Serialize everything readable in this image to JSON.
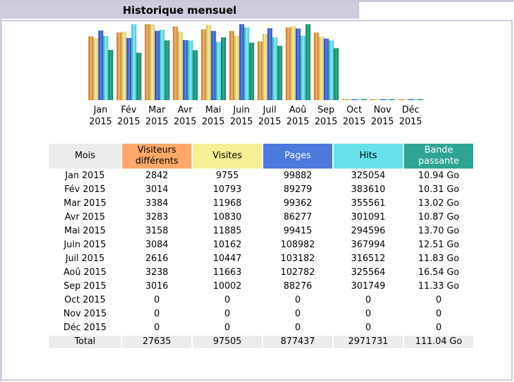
{
  "title": "Historique mensuel",
  "headers": {
    "month": "Mois",
    "visitors": "Visiteurs différents",
    "visits": "Visites",
    "pages": "Pages",
    "hits": "Hits",
    "bandwidth": "Bande passante"
  },
  "colors": {
    "visitors": "#e8943a",
    "visits": "#e9dc78",
    "pages": "#3c63d4",
    "hits": "#4fd8e0",
    "bandwidth": "#1f9a7a"
  },
  "chart_data": {
    "type": "bar",
    "categories": [
      {
        "month": "Jan",
        "year": "2015"
      },
      {
        "month": "Fév",
        "year": "2015"
      },
      {
        "month": "Mar",
        "year": "2015"
      },
      {
        "month": "Avr",
        "year": "2015"
      },
      {
        "month": "Mai",
        "year": "2015"
      },
      {
        "month": "Juin",
        "year": "2015"
      },
      {
        "month": "Juil",
        "year": "2015"
      },
      {
        "month": "Aoû",
        "year": "2015"
      },
      {
        "month": "Sep",
        "year": "2015"
      },
      {
        "month": "Oct",
        "year": "2015"
      },
      {
        "month": "Nov",
        "year": "2015"
      },
      {
        "month": "Déc",
        "year": "2015"
      }
    ],
    "series": [
      {
        "key": "visitors",
        "values": [
          2842,
          3014,
          3384,
          3283,
          3158,
          3084,
          2616,
          3238,
          3016,
          0,
          0,
          0
        ]
      },
      {
        "key": "visits",
        "values": [
          9755,
          10793,
          11968,
          10830,
          11885,
          10162,
          10447,
          11663,
          10002,
          0,
          0,
          0
        ]
      },
      {
        "key": "pages",
        "values": [
          99882,
          89279,
          99362,
          86277,
          99415,
          108982,
          103182,
          102782,
          88276,
          0,
          0,
          0
        ]
      },
      {
        "key": "hits",
        "values": [
          325054,
          383610,
          355561,
          301091,
          294596,
          367994,
          316512,
          325564,
          301749,
          0,
          0,
          0
        ]
      },
      {
        "key": "bandwidth",
        "values": [
          10.94,
          10.31,
          13.02,
          10.87,
          13.7,
          12.51,
          11.83,
          16.54,
          11.33,
          0,
          0,
          0
        ]
      }
    ]
  },
  "rows": [
    {
      "month": "Jan 2015",
      "visitors": "2842",
      "visits": "9755",
      "pages": "99882",
      "hits": "325054",
      "bandwidth": "10.94 Go"
    },
    {
      "month": "Fév 2015",
      "visitors": "3014",
      "visits": "10793",
      "pages": "89279",
      "hits": "383610",
      "bandwidth": "10.31 Go"
    },
    {
      "month": "Mar 2015",
      "visitors": "3384",
      "visits": "11968",
      "pages": "99362",
      "hits": "355561",
      "bandwidth": "13.02 Go"
    },
    {
      "month": "Avr 2015",
      "visitors": "3283",
      "visits": "10830",
      "pages": "86277",
      "hits": "301091",
      "bandwidth": "10.87 Go"
    },
    {
      "month": "Mai 2015",
      "visitors": "3158",
      "visits": "11885",
      "pages": "99415",
      "hits": "294596",
      "bandwidth": "13.70 Go"
    },
    {
      "month": "Juin 2015",
      "visitors": "3084",
      "visits": "10162",
      "pages": "108982",
      "hits": "367994",
      "bandwidth": "12.51 Go"
    },
    {
      "month": "Juil 2015",
      "visitors": "2616",
      "visits": "10447",
      "pages": "103182",
      "hits": "316512",
      "bandwidth": "11.83 Go"
    },
    {
      "month": "Aoû 2015",
      "visitors": "3238",
      "visits": "11663",
      "pages": "102782",
      "hits": "325564",
      "bandwidth": "16.54 Go"
    },
    {
      "month": "Sep 2015",
      "visitors": "3016",
      "visits": "10002",
      "pages": "88276",
      "hits": "301749",
      "bandwidth": "11.33 Go"
    },
    {
      "month": "Oct 2015",
      "visitors": "0",
      "visits": "0",
      "pages": "0",
      "hits": "0",
      "bandwidth": "0"
    },
    {
      "month": "Nov 2015",
      "visitors": "0",
      "visits": "0",
      "pages": "0",
      "hits": "0",
      "bandwidth": "0"
    },
    {
      "month": "Déc 2015",
      "visitors": "0",
      "visits": "0",
      "pages": "0",
      "hits": "0",
      "bandwidth": "0"
    }
  ],
  "total": {
    "label": "Total",
    "visitors": "27635",
    "visits": "97505",
    "pages": "877437",
    "hits": "2971731",
    "bandwidth": "111.04 Go"
  }
}
